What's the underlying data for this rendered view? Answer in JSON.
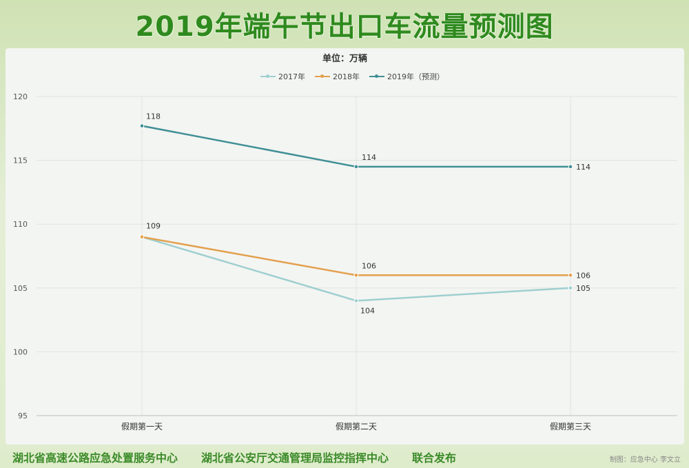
{
  "page": {
    "banner_title": "2019年端午节出口车流量预测图",
    "footer": {
      "org1": "湖北省高速公路应急处置服务中心",
      "org2": "湖北省公安厅交通管理局监控指挥中心",
      "release": "联合发布",
      "credit": "制图：应急中心 李文立"
    }
  },
  "colors": {
    "s2017": "#9ecfd0",
    "s2018": "#e3a04e",
    "s2019": "#3f8f95",
    "grid": "#dfe3dd",
    "axis_text": "#555555"
  },
  "chart_data": {
    "type": "line",
    "title": "单位：万辆",
    "categories": [
      "假期第一天",
      "假期第二天",
      "假期第三天"
    ],
    "ylim": [
      95,
      120
    ],
    "yticks": [
      95,
      100,
      105,
      110,
      115,
      120
    ],
    "grid": true,
    "legend_position": "top-center",
    "series": [
      {
        "name": "2017年",
        "values": [
          109,
          104,
          105
        ],
        "labels": [
          "",
          "104",
          "105"
        ]
      },
      {
        "name": "2018年",
        "values": [
          109,
          106,
          106
        ],
        "labels": [
          "109",
          "106",
          "106"
        ]
      },
      {
        "name": "2019年（预测）",
        "values": [
          117.7,
          114.5,
          114.5
        ],
        "labels": [
          "118",
          "114",
          "114"
        ]
      }
    ]
  }
}
